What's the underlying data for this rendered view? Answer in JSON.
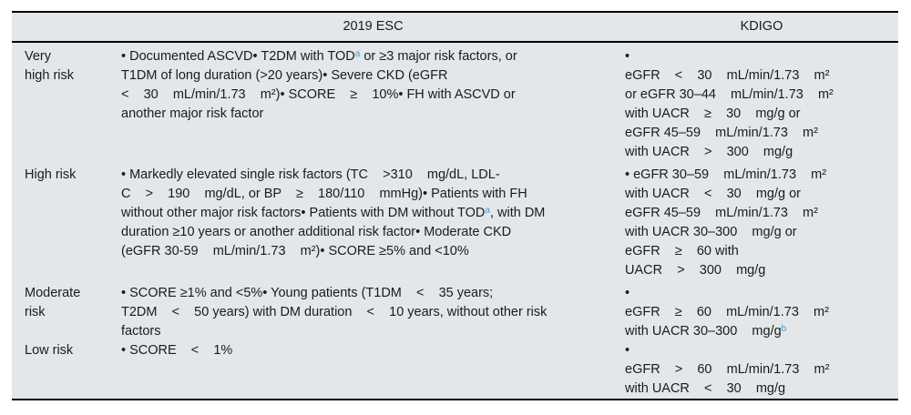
{
  "colors": {
    "accent": "#3f9fd8",
    "table_background": "#e3e7e9",
    "rule": "#000000",
    "text": "#1b1b1b",
    "page_background": "#ffffff"
  },
  "table": {
    "headers": {
      "esc": "2019 ESC",
      "kdigo": "KDIGO"
    },
    "rows": [
      {
        "risk_lines": [
          [
            {
              "t": "Very"
            }
          ],
          [
            {
              "t": "high risk"
            }
          ]
        ],
        "esc_lines": [
          [
            {
              "t": "• Documented ASCVD• T2DM with TOD"
            },
            {
              "t": "a",
              "sup": true,
              "accent": true
            },
            {
              "t": " or ≥3 major risk factors, or"
            }
          ],
          [
            {
              "t": "T1DM of long duration (>20 years)• Severe CKD (eGFR"
            }
          ],
          [
            {
              "t": "<    30    mL/min/1.73    m²)• SCORE    ≥    10%• FH with ASCVD or"
            }
          ],
          [
            {
              "t": "another major risk factor"
            }
          ]
        ],
        "kdigo_lines": [
          [
            {
              "t": "•"
            }
          ],
          [
            {
              "t": "eGFR    <    30    mL/min/1.73    m²"
            }
          ],
          [
            {
              "t": "or eGFR 30–44    mL/min/1.73    m²"
            }
          ],
          [
            {
              "t": "with UACR    ≥    30    mg/g or"
            }
          ],
          [
            {
              "t": "eGFR 45–59    mL/min/1.73    m²"
            }
          ],
          [
            {
              "t": "with UACR    >    300    mg/g"
            }
          ]
        ]
      },
      {
        "risk_lines": [
          [
            {
              "t": "High risk"
            }
          ]
        ],
        "esc_lines": [
          [
            {
              "t": "• Markedly elevated single risk factors (TC    >310    mg/dL, LDL-"
            }
          ],
          [
            {
              "t": "C    >    190    mg/dL, or BP    ≥    180/110    mmHg)• Patients with FH"
            }
          ],
          [
            {
              "t": "without other major risk factors• Patients with DM without TOD"
            },
            {
              "t": "a",
              "sup": true,
              "accent": true
            },
            {
              "t": ", with DM"
            }
          ],
          [
            {
              "t": "duration ≥10 years or another additional risk factor• Moderate CKD"
            }
          ],
          [
            {
              "t": "(eGFR 30-59    mL/min/1.73    m²)• SCORE ≥5% and <10%"
            }
          ]
        ],
        "kdigo_lines": [
          [
            {
              "t": "• eGFR 30–59    mL/min/1.73    m²"
            }
          ],
          [
            {
              "t": "with UACR    <    30    mg/g or"
            }
          ],
          [
            {
              "t": "eGFR 45–59    mL/min/1.73    m²"
            }
          ],
          [
            {
              "t": "with UACR 30–300    mg/g or"
            }
          ],
          [
            {
              "t": "eGFR    ≥    60 with"
            }
          ],
          [
            {
              "t": "UACR    >    300    mg/g"
            }
          ]
        ]
      },
      {
        "risk_lines": [
          [
            {
              "t": "Moderate"
            }
          ],
          [
            {
              "t": "risk"
            }
          ]
        ],
        "esc_lines": [
          [
            {
              "t": "• SCORE ≥1% and <5%• Young patients (T1DM    <    35 years;"
            }
          ],
          [
            {
              "t": "T2DM    <    50 years) with DM duration    <    10 years, without other risk"
            }
          ],
          [
            {
              "t": "factors"
            }
          ]
        ],
        "kdigo_lines": [
          [
            {
              "t": "•"
            }
          ],
          [
            {
              "t": "eGFR    ≥    60    mL/min/1.73    m²"
            }
          ],
          [
            {
              "t": "with UACR 30–300    mg/g"
            },
            {
              "t": "b",
              "sup": true,
              "accent": true
            }
          ]
        ]
      },
      {
        "risk_lines": [
          [
            {
              "t": "Low risk"
            }
          ]
        ],
        "esc_lines": [
          [
            {
              "t": "• SCORE    <    1%"
            }
          ]
        ],
        "kdigo_lines": [
          [
            {
              "t": "•"
            }
          ],
          [
            {
              "t": "eGFR    >    60    mL/min/1.73    m²"
            }
          ],
          [
            {
              "t": "with UACR    <    30    mg/g"
            }
          ]
        ]
      }
    ]
  }
}
